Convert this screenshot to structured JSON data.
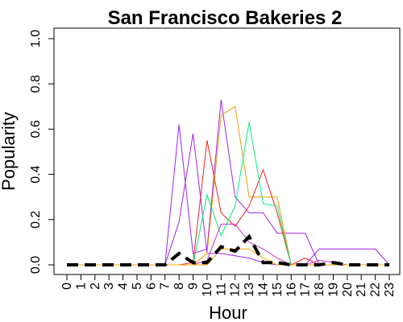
{
  "chart_data": {
    "type": "line",
    "title": "San Francisco Bakeries 2",
    "xlabel": "Hour",
    "ylabel": "Popularity",
    "xlim": [
      0,
      23
    ],
    "ylim": [
      0,
      1
    ],
    "x_ticks": [
      "0",
      "1",
      "2",
      "3",
      "4",
      "5",
      "6",
      "7",
      "8",
      "9",
      "10",
      "11",
      "12",
      "13",
      "14",
      "15",
      "16",
      "17",
      "18",
      "19",
      "20",
      "21",
      "22",
      "23"
    ],
    "y_ticks": [
      "0.0",
      "0.2",
      "0.4",
      "0.6",
      "0.8",
      "1.0"
    ],
    "y_tick_values": [
      0,
      0.2,
      0.4,
      0.6,
      0.8,
      1.0
    ],
    "grid": false,
    "legend": "none",
    "x": [
      0,
      1,
      2,
      3,
      4,
      5,
      6,
      7,
      8,
      9,
      10,
      11,
      12,
      13,
      14,
      15,
      16,
      17,
      18,
      19,
      20,
      21,
      22,
      23
    ],
    "series": [
      {
        "color": "#a020f0",
        "width": 1,
        "dash": "",
        "values": [
          0,
          0,
          0,
          0,
          0,
          0,
          0,
          0,
          0.62,
          0.05,
          0.07,
          0.73,
          0.3,
          0.23,
          0.23,
          0.14,
          0.14,
          0.14,
          0,
          0,
          0,
          0,
          0,
          0
        ]
      },
      {
        "color": "#a020f0",
        "width": 1,
        "dash": "",
        "values": [
          0,
          0,
          0,
          0,
          0,
          0,
          0,
          0,
          0.19,
          0.58,
          0.05,
          0.05,
          0.04,
          0.03,
          0.01,
          0,
          0,
          0,
          0.07,
          0.07,
          0.07,
          0.07,
          0.07,
          0
        ]
      },
      {
        "color": "#ee2020",
        "width": 1,
        "dash": "",
        "values": [
          0,
          0,
          0,
          0,
          0,
          0,
          0,
          0,
          0,
          0.01,
          0.55,
          0.23,
          0.17,
          0.26,
          0.42,
          0.23,
          0,
          0.03,
          0,
          0,
          0,
          0,
          0,
          0
        ]
      },
      {
        "color": "#ee9a00",
        "width": 1,
        "dash": "",
        "values": [
          0,
          0,
          0,
          0,
          0,
          0,
          0,
          0,
          0,
          0,
          0.05,
          0.66,
          0.7,
          0.3,
          0.3,
          0.3,
          0,
          0,
          0,
          0,
          0,
          0,
          0,
          0
        ]
      },
      {
        "color": "#00ee76",
        "width": 1,
        "dash": "",
        "values": [
          0,
          0,
          0,
          0,
          0,
          0,
          0,
          0,
          0,
          0,
          0.31,
          0.13,
          0.26,
          0.63,
          0.27,
          0.26,
          0,
          0,
          0,
          0,
          0,
          0,
          0,
          0
        ]
      },
      {
        "color": "#cc33cc",
        "width": 1,
        "dash": "",
        "values": [
          0,
          0,
          0,
          0,
          0,
          0,
          0,
          0,
          0,
          0,
          0.02,
          0.18,
          0.18,
          0.1,
          0.07,
          0.03,
          0,
          0,
          0.02,
          0.01,
          0,
          0,
          0,
          0
        ]
      },
      {
        "color": "#ffa500",
        "width": 1,
        "dash": "",
        "values": [
          0,
          0,
          0,
          0,
          0,
          0,
          0,
          0,
          0,
          0,
          0,
          0.07,
          0.07,
          0.07,
          0.03,
          0,
          0,
          0,
          0,
          0,
          0,
          0,
          0,
          0
        ]
      },
      {
        "color": "#000000",
        "width": 4,
        "dash": "14 8",
        "values": [
          0,
          0,
          0,
          0,
          0,
          0,
          0,
          0,
          0.05,
          0.01,
          0.01,
          0.08,
          0.06,
          0.125,
          0.01,
          0.01,
          0,
          0,
          0,
          0.01,
          0,
          0,
          0,
          0
        ]
      }
    ]
  }
}
